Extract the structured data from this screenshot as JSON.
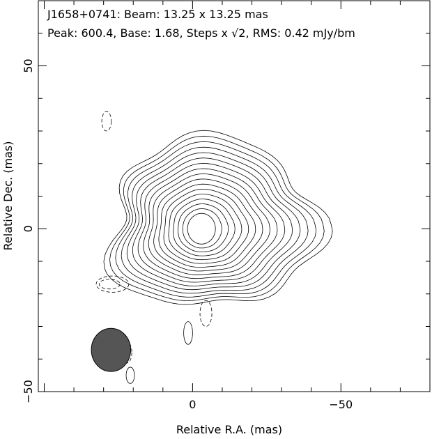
{
  "chart_data": {
    "type": "contour",
    "title_line1": "J1658+0741: Beam: 13.25 x 13.25 mas",
    "title_line2_prefix": "Peak: 600.4, Base: 1.68, Steps x ",
    "title_line2_sqrt": "√2",
    "title_line2_suffix": ", RMS: 0.42 mJy/bm",
    "xlabel": "Relative R.A. (mas)",
    "ylabel": "Relative Dec. (mas)",
    "xlim": [
      52,
      -80
    ],
    "ylim": [
      -50,
      70
    ],
    "xticks": [
      {
        "value": 0,
        "label": "0"
      },
      {
        "value": -50,
        "label": "−50"
      }
    ],
    "yticks": [
      {
        "value": 50,
        "label": "50"
      },
      {
        "value": 0,
        "label": "0"
      },
      {
        "value": -50,
        "label": "−50"
      }
    ],
    "peak_position": [
      -3,
      0
    ],
    "peak": 600.4,
    "base": 1.68,
    "step_factor": 1.414,
    "n_positive_levels": 17,
    "beam": {
      "major": 13.25,
      "minor": 13.25,
      "center": [
        27.5,
        -37.2
      ],
      "color": "#555555"
    },
    "negative_contours": [
      {
        "center": [
          27,
          -17
        ],
        "rx": 5.5,
        "ry": 2.5
      },
      {
        "center": [
          28,
          -17
        ],
        "rx": 3.5,
        "ry": 1.5
      },
      {
        "center": [
          -4.5,
          -26
        ],
        "rx": 2,
        "ry": 4
      },
      {
        "center": [
          29,
          33
        ],
        "rx": 1.6,
        "ry": 3
      },
      {
        "center": [
          22,
          -38
        ],
        "rx": 1.5,
        "ry": 3.2
      }
    ],
    "positive_islands": [
      {
        "center": [
          1.5,
          -32
        ],
        "rx": 1.5,
        "ry": 3.5
      },
      {
        "center": [
          21,
          -45
        ],
        "rx": 1.4,
        "ry": 2.5
      }
    ]
  }
}
